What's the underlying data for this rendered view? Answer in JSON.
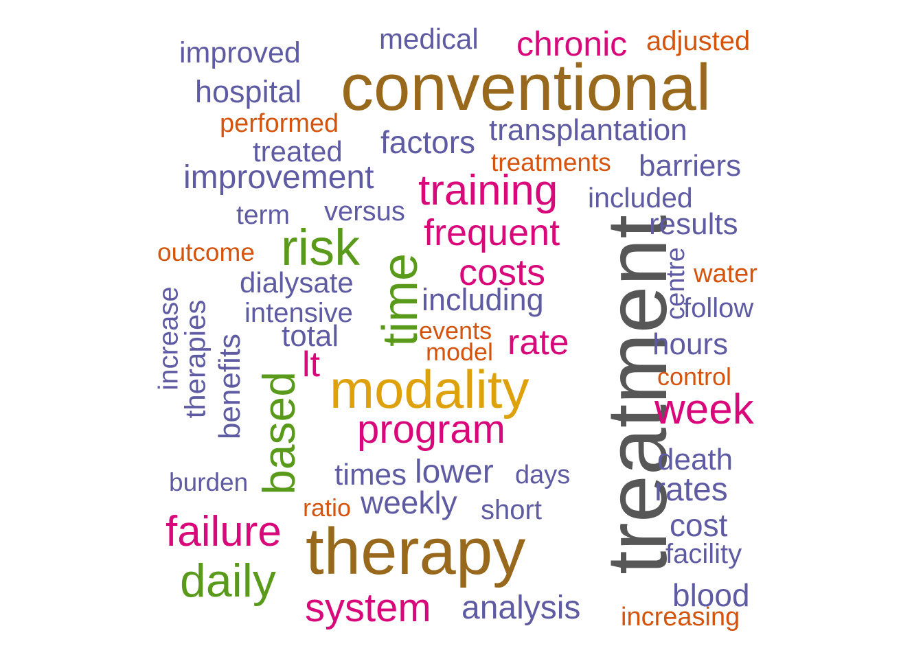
{
  "colors": {
    "purple": "#5e5ba3",
    "pink": "#d9087a",
    "orange": "#d4540d",
    "brown": "#98691d",
    "gold": "#dfa10b",
    "green": "#5a9a1b",
    "gray": "#575757"
  },
  "words": [
    {
      "text": "conventional",
      "color": "brown"
    },
    {
      "text": "treatment",
      "color": "gray"
    },
    {
      "text": "therapy",
      "color": "brown"
    },
    {
      "text": "modality",
      "color": "gold"
    },
    {
      "text": "medical",
      "color": "purple"
    },
    {
      "text": "chronic",
      "color": "pink"
    },
    {
      "text": "adjusted",
      "color": "orange"
    },
    {
      "text": "improved",
      "color": "purple"
    },
    {
      "text": "hospital",
      "color": "purple"
    },
    {
      "text": "performed",
      "color": "orange"
    },
    {
      "text": "factors",
      "color": "purple"
    },
    {
      "text": "transplantation",
      "color": "purple"
    },
    {
      "text": "treated",
      "color": "purple"
    },
    {
      "text": "treatments",
      "color": "orange"
    },
    {
      "text": "barriers",
      "color": "purple"
    },
    {
      "text": "improvement",
      "color": "purple"
    },
    {
      "text": "training",
      "color": "pink"
    },
    {
      "text": "included",
      "color": "purple"
    },
    {
      "text": "term",
      "color": "purple"
    },
    {
      "text": "versus",
      "color": "purple"
    },
    {
      "text": "results",
      "color": "purple"
    },
    {
      "text": "frequent",
      "color": "pink"
    },
    {
      "text": "outcome",
      "color": "orange"
    },
    {
      "text": "risk",
      "color": "green"
    },
    {
      "text": "costs",
      "color": "pink"
    },
    {
      "text": "centre",
      "color": "purple"
    },
    {
      "text": "water",
      "color": "orange"
    },
    {
      "text": "dialysate",
      "color": "purple"
    },
    {
      "text": "time",
      "color": "green"
    },
    {
      "text": "including",
      "color": "purple"
    },
    {
      "text": "follow",
      "color": "purple"
    },
    {
      "text": "intensive",
      "color": "purple"
    },
    {
      "text": "increase",
      "color": "purple"
    },
    {
      "text": "therapies",
      "color": "purple"
    },
    {
      "text": "events",
      "color": "orange"
    },
    {
      "text": "total",
      "color": "purple"
    },
    {
      "text": "rate",
      "color": "pink"
    },
    {
      "text": "hours",
      "color": "purple"
    },
    {
      "text": "benefits",
      "color": "purple"
    },
    {
      "text": "model",
      "color": "orange"
    },
    {
      "text": "lt",
      "color": "pink"
    },
    {
      "text": "control",
      "color": "orange"
    },
    {
      "text": "based",
      "color": "green"
    },
    {
      "text": "week",
      "color": "pink"
    },
    {
      "text": "program",
      "color": "pink"
    },
    {
      "text": "death",
      "color": "purple"
    },
    {
      "text": "times",
      "color": "purple"
    },
    {
      "text": "lower",
      "color": "purple"
    },
    {
      "text": "days",
      "color": "purple"
    },
    {
      "text": "burden",
      "color": "purple"
    },
    {
      "text": "rates",
      "color": "purple"
    },
    {
      "text": "weekly",
      "color": "purple"
    },
    {
      "text": "ratio",
      "color": "orange"
    },
    {
      "text": "short",
      "color": "purple"
    },
    {
      "text": "failure",
      "color": "pink"
    },
    {
      "text": "cost",
      "color": "purple"
    },
    {
      "text": "facility",
      "color": "purple"
    },
    {
      "text": "daily",
      "color": "green"
    },
    {
      "text": "blood",
      "color": "purple"
    },
    {
      "text": "system",
      "color": "pink"
    },
    {
      "text": "analysis",
      "color": "purple"
    },
    {
      "text": "increasing",
      "color": "orange"
    }
  ]
}
